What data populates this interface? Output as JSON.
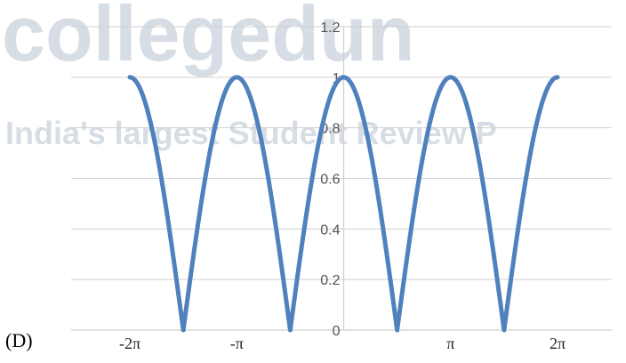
{
  "option_label": "(D)",
  "watermark": {
    "line1": "collegedun",
    "line2": "India's largest Student Review P"
  },
  "colors": {
    "curve": "#4f81bd",
    "gridline": "#d0d0d0",
    "axis": "#cfcfcf"
  },
  "chart_data": {
    "type": "line",
    "function": "|cos x|",
    "title": "",
    "xlabel": "",
    "ylabel": "",
    "xlim": [
      -6.2832,
      6.2832
    ],
    "ylim": [
      0,
      1.2
    ],
    "y_ticks": [
      "0",
      "0.2",
      "0.4",
      "0.6",
      "0.8",
      "1",
      "1.2"
    ],
    "x_tick_labels": [
      {
        "value": -6.2832,
        "label": "-2π"
      },
      {
        "value": -3.1416,
        "label": "-π"
      },
      {
        "value": 3.1416,
        "label": "π"
      },
      {
        "value": 6.2832,
        "label": "2π"
      }
    ],
    "grid": "horizontal",
    "series": [
      {
        "x": [
          -6.2832,
          -5.4978,
          -4.7124,
          -3.927,
          -3.1416,
          -2.3562,
          -1.5708,
          -0.7854,
          0,
          0.7854,
          1.5708,
          2.3562,
          3.1416,
          3.927,
          4.7124,
          5.4978,
          6.2832
        ],
        "y": [
          1,
          0.7071,
          0,
          0.7071,
          1,
          0.7071,
          0,
          0.7071,
          1,
          0.7071,
          0,
          0.7071,
          1,
          0.7071,
          0,
          0.7071,
          1
        ]
      }
    ]
  }
}
